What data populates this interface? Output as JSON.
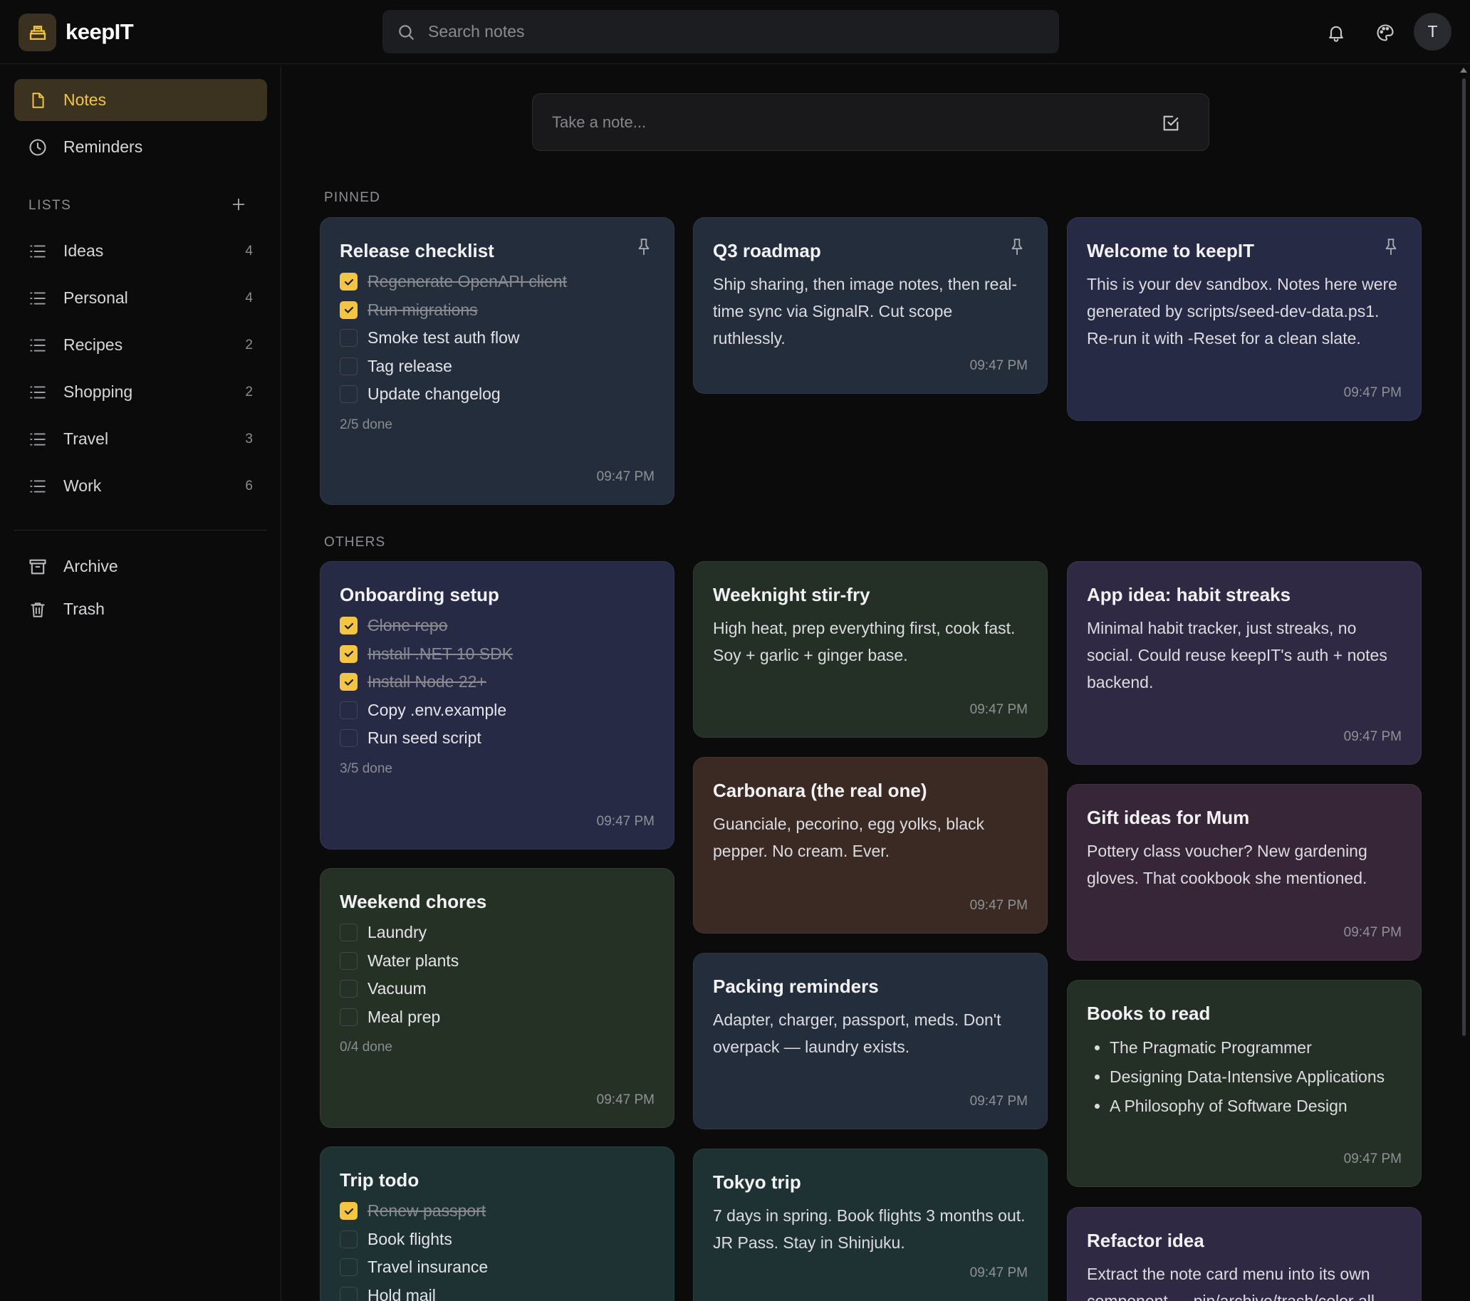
{
  "app": {
    "title": "keepIT",
    "accent": "#f4c542"
  },
  "search": {
    "placeholder": "Search notes"
  },
  "header": {
    "avatar_initial": "T",
    "icons": [
      "bell-icon",
      "palette-icon"
    ]
  },
  "sidebar": {
    "primary": [
      {
        "label": "Notes",
        "icon": "note-icon",
        "active": true
      },
      {
        "label": "Reminders",
        "icon": "clock-icon",
        "active": false
      }
    ],
    "lists_header": "LISTS",
    "lists": [
      {
        "label": "Ideas",
        "count": "4"
      },
      {
        "label": "Personal",
        "count": "4"
      },
      {
        "label": "Recipes",
        "count": "2"
      },
      {
        "label": "Shopping",
        "count": "2"
      },
      {
        "label": "Travel",
        "count": "3"
      },
      {
        "label": "Work",
        "count": "6"
      }
    ],
    "secondary": [
      {
        "label": "Archive",
        "icon": "archive-icon"
      },
      {
        "label": "Trash",
        "icon": "trash-icon"
      }
    ]
  },
  "composer": {
    "placeholder": "Take a note..."
  },
  "sections": {
    "pinned": "PINNED",
    "others": "OTHERS"
  },
  "notes": {
    "release": {
      "title": "Release checklist",
      "items": [
        {
          "text": "Regenerate OpenAPI client",
          "done": true
        },
        {
          "text": "Run migrations",
          "done": true
        },
        {
          "text": "Smoke test auth flow",
          "done": false
        },
        {
          "text": "Tag release",
          "done": false
        },
        {
          "text": "Update changelog",
          "done": false
        }
      ],
      "progress": "2/5 done",
      "time": "09:47 PM"
    },
    "roadmap": {
      "title": "Q3 roadmap",
      "body": "Ship sharing, then image notes, then real-time sync via SignalR. Cut scope ruthlessly.",
      "time": "09:47 PM"
    },
    "welcome": {
      "title": "Welcome to keepIT",
      "body": "This is your dev sandbox. Notes here were generated by scripts/seed-dev-data.ps1. Re-run it with -Reset for a clean slate.",
      "time": "09:47 PM"
    },
    "onboarding": {
      "title": "Onboarding setup",
      "items": [
        {
          "text": "Clone repo",
          "done": true
        },
        {
          "text": "Install .NET 10 SDK",
          "done": true
        },
        {
          "text": "Install Node 22+",
          "done": true
        },
        {
          "text": "Copy .env.example",
          "done": false
        },
        {
          "text": "Run seed script",
          "done": false
        }
      ],
      "progress": "3/5 done",
      "time": "09:47 PM"
    },
    "chores": {
      "title": "Weekend chores",
      "items": [
        {
          "text": "Laundry",
          "done": false
        },
        {
          "text": "Water plants",
          "done": false
        },
        {
          "text": "Vacuum",
          "done": false
        },
        {
          "text": "Meal prep",
          "done": false
        }
      ],
      "progress": "0/4 done",
      "time": "09:47 PM"
    },
    "trip": {
      "title": "Trip todo",
      "items": [
        {
          "text": "Renew passport",
          "done": true
        },
        {
          "text": "Book flights",
          "done": false
        },
        {
          "text": "Travel insurance",
          "done": false
        },
        {
          "text": "Hold mail",
          "done": false
        }
      ]
    },
    "stirfry": {
      "title": "Weeknight stir-fry",
      "body": "High heat, prep everything first, cook fast. Soy + garlic + ginger base.",
      "time": "09:47 PM"
    },
    "carbonara": {
      "title": "Carbonara (the real one)",
      "body": "Guanciale, pecorino, egg yolks, black pepper. No cream. Ever.",
      "time": "09:47 PM"
    },
    "packing": {
      "title": "Packing reminders",
      "body": "Adapter, charger, passport, meds. Don't overpack — laundry exists.",
      "time": "09:47 PM"
    },
    "tokyo": {
      "title": "Tokyo trip",
      "body": "7 days in spring. Book flights 3 months out. JR Pass. Stay in Shinjuku.",
      "time": "09:47 PM"
    },
    "habit": {
      "title": "App idea: habit streaks",
      "body": "Minimal habit tracker, just streaks, no social. Could reuse keepIT's auth + notes backend.",
      "time": "09:47 PM"
    },
    "gift": {
      "title": "Gift ideas for Mum",
      "body": "Pottery class voucher? New gardening gloves. That cookbook she mentioned.",
      "time": "09:47 PM"
    },
    "books": {
      "title": "Books to read",
      "items": [
        "The Pragmatic Programmer",
        "Designing Data-Intensive Applications",
        "A Philosophy of Software Design"
      ],
      "time": "09:47 PM"
    },
    "refactor": {
      "title": "Refactor idea",
      "body": "Extract the note card menu into its own component — pin/archive/trash/color all"
    }
  }
}
